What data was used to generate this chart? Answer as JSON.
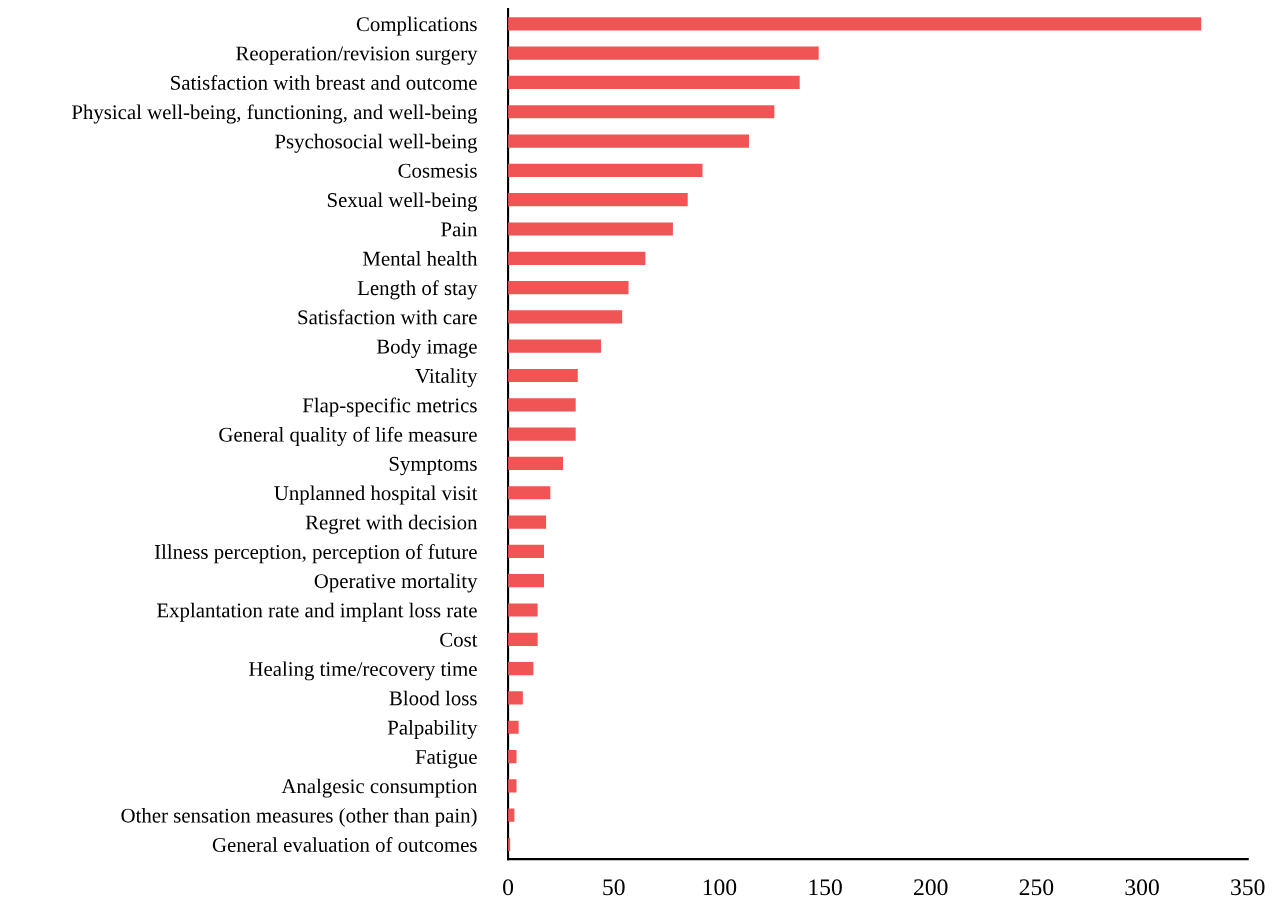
{
  "chart_data": {
    "type": "bar",
    "orientation": "horizontal",
    "color": "#f05455",
    "categories": [
      "Complications",
      "Reoperation/revision surgery",
      "Satisfaction with breast and outcome",
      "Physical well-being, functioning, and well-being",
      "Psychosocial well-being",
      "Cosmesis",
      "Sexual well-being",
      "Pain",
      "Mental health",
      "Length of stay",
      "Satisfaction with care",
      "Body image",
      "Vitality",
      "Flap-specific metrics",
      "General quality of life measure",
      "Symptoms",
      "Unplanned hospital visit",
      "Regret with decision",
      "Illness perception, perception of future",
      "Operative mortality",
      "Explantation rate and implant loss rate",
      "Cost",
      "Healing time/recovery time",
      "Blood loss",
      "Palpability",
      "Fatigue",
      "Analgesic consumption",
      "Other sensation measures (other than pain)",
      "General evaluation of outcomes"
    ],
    "values": [
      328,
      147,
      138,
      126,
      114,
      92,
      85,
      78,
      65,
      57,
      54,
      44,
      33,
      32,
      32,
      26,
      20,
      18,
      17,
      17,
      14,
      14,
      12,
      7,
      5,
      4,
      4,
      3,
      1
    ],
    "xlim": [
      0,
      350
    ],
    "xticks": [
      0,
      50,
      100,
      150,
      200,
      250,
      300,
      350
    ],
    "grid": false,
    "legend": false
  }
}
